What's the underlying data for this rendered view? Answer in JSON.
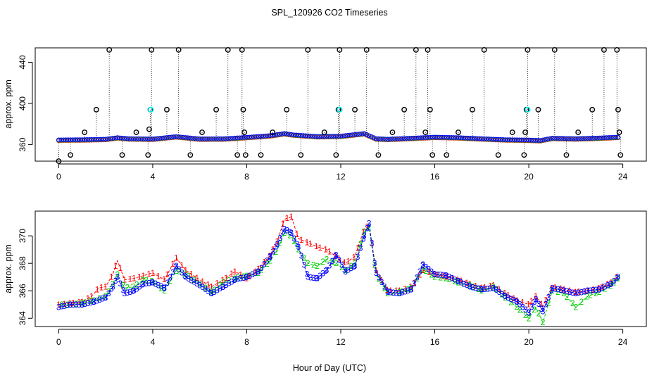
{
  "title": "SPL_120926  CO2 Timeseries",
  "xlabel": "Hour of Day (UTC)",
  "colors": {
    "series1": "#ff0000",
    "series2": "#00cd00",
    "series3": "#0000ff",
    "flagged": "#000000",
    "cyan": "#00ffff"
  },
  "chart_data": [
    {
      "type": "scatter",
      "name": "top-panel",
      "ylabel": "approx. ppm",
      "xlim": [
        -1,
        25
      ],
      "ylim": [
        344,
        454
      ],
      "xticks": [
        0,
        4,
        8,
        12,
        16,
        20,
        24
      ],
      "yticks": [
        360,
        400,
        440
      ],
      "baseline": [
        [
          0,
          364.3
        ],
        [
          1,
          364.5
        ],
        [
          2,
          365.0
        ],
        [
          2.5,
          366.5
        ],
        [
          3,
          365.5
        ],
        [
          4,
          365.2
        ],
        [
          5,
          367.5
        ],
        [
          6,
          365.3
        ],
        [
          7,
          365.4
        ],
        [
          8,
          366.8
        ],
        [
          9,
          368.5
        ],
        [
          9.6,
          370.5
        ],
        [
          10,
          369.2
        ],
        [
          11,
          367.6
        ],
        [
          12,
          368.0
        ],
        [
          13,
          370.5
        ],
        [
          13.5,
          365.5
        ],
        [
          14,
          365.0
        ],
        [
          15,
          366.0
        ],
        [
          16,
          367.0
        ],
        [
          17,
          366.5
        ],
        [
          18,
          365.5
        ],
        [
          19,
          364.5
        ],
        [
          20,
          364.2
        ],
        [
          20.5,
          363.8
        ],
        [
          21,
          366.0
        ],
        [
          22,
          365.5
        ],
        [
          23,
          366.2
        ],
        [
          23.8,
          367.0
        ]
      ],
      "flagged_points": [
        [
          0,
          344
        ],
        [
          0.5,
          350
        ],
        [
          1.1,
          372
        ],
        [
          1.6,
          394
        ],
        [
          2.15,
          452
        ],
        [
          2.7,
          350
        ],
        [
          3.3,
          372
        ],
        [
          3.8,
          350
        ],
        [
          3.85,
          375
        ],
        [
          3.9,
          394
        ],
        [
          3.95,
          452
        ],
        [
          4.6,
          394
        ],
        [
          5.1,
          452
        ],
        [
          5.6,
          350
        ],
        [
          6.1,
          372
        ],
        [
          6.7,
          394
        ],
        [
          7.2,
          452
        ],
        [
          7.6,
          350
        ],
        [
          7.8,
          452
        ],
        [
          7.85,
          394
        ],
        [
          7.9,
          372
        ],
        [
          7.95,
          350
        ],
        [
          8.6,
          350
        ],
        [
          9.1,
          372
        ],
        [
          9.7,
          394
        ],
        [
          10.3,
          350
        ],
        [
          10.6,
          452
        ],
        [
          11.3,
          372
        ],
        [
          11.8,
          350
        ],
        [
          11.9,
          394
        ],
        [
          11.95,
          452
        ],
        [
          12.6,
          394
        ],
        [
          13.1,
          452
        ],
        [
          13.6,
          350
        ],
        [
          14.2,
          372
        ],
        [
          14.7,
          394
        ],
        [
          15.2,
          452
        ],
        [
          15.6,
          372
        ],
        [
          15.7,
          452
        ],
        [
          15.8,
          394
        ],
        [
          15.9,
          350
        ],
        [
          16.5,
          350
        ],
        [
          17.0,
          372
        ],
        [
          17.6,
          394
        ],
        [
          18.1,
          452
        ],
        [
          18.7,
          350
        ],
        [
          19.3,
          372
        ],
        [
          19.8,
          350
        ],
        [
          19.85,
          372
        ],
        [
          19.9,
          394
        ],
        [
          19.95,
          452
        ],
        [
          20.4,
          394
        ],
        [
          21.1,
          452
        ],
        [
          21.6,
          350
        ],
        [
          22.1,
          372
        ],
        [
          22.7,
          394
        ],
        [
          23.2,
          452
        ],
        [
          23.75,
          452
        ],
        [
          23.8,
          394
        ],
        [
          23.85,
          372
        ],
        [
          23.9,
          350
        ]
      ],
      "cyan_points": [
        [
          3.92,
          394
        ],
        [
          11.95,
          394
        ],
        [
          19.95,
          394
        ]
      ]
    },
    {
      "type": "line",
      "name": "bottom-panel",
      "ylabel": "approx. ppm",
      "xlim": [
        -1,
        25
      ],
      "ylim": [
        363.4,
        371.8
      ],
      "xticks": [
        0,
        4,
        8,
        12,
        16,
        20,
        24
      ],
      "yticks": [
        364,
        366,
        368,
        370
      ],
      "markers": [
        "1",
        "2",
        "3"
      ],
      "series": [
        {
          "name": "1",
          "color": "#ff0000",
          "values": [
            [
              0,
              365.0
            ],
            [
              0.5,
              365.1
            ],
            [
              1,
              365.2
            ],
            [
              1.4,
              365.6
            ],
            [
              1.7,
              366.2
            ],
            [
              2.0,
              366.3
            ],
            [
              2.3,
              367.2
            ],
            [
              2.5,
              368.2
            ],
            [
              2.8,
              366.8
            ],
            [
              3.2,
              366.9
            ],
            [
              3.6,
              367.1
            ],
            [
              4.0,
              367.3
            ],
            [
              4.5,
              366.8
            ],
            [
              5.0,
              368.4
            ],
            [
              5.4,
              367.5
            ],
            [
              6.0,
              366.8
            ],
            [
              6.5,
              366.3
            ],
            [
              7.0,
              366.8
            ],
            [
              7.5,
              367.4
            ],
            [
              8.0,
              366.9
            ],
            [
              8.5,
              367.6
            ],
            [
              9.0,
              368.6
            ],
            [
              9.3,
              369.6
            ],
            [
              9.6,
              371.2
            ],
            [
              9.9,
              371.4
            ],
            [
              10.2,
              369.8
            ],
            [
              10.6,
              369.5
            ],
            [
              11.0,
              369.2
            ],
            [
              11.4,
              369.0
            ],
            [
              11.8,
              368.5
            ],
            [
              12.2,
              368.0
            ],
            [
              12.6,
              368.5
            ],
            [
              13.0,
              370.5
            ],
            [
              13.2,
              370.8
            ],
            [
              13.5,
              367.5
            ],
            [
              14.0,
              366.0
            ],
            [
              14.5,
              366.0
            ],
            [
              15.0,
              366.3
            ],
            [
              15.5,
              367.5
            ],
            [
              16.0,
              367.2
            ],
            [
              16.5,
              367.0
            ],
            [
              17.0,
              366.8
            ],
            [
              17.5,
              366.5
            ],
            [
              18.0,
              366.2
            ],
            [
              18.5,
              366.4
            ],
            [
              19.0,
              365.8
            ],
            [
              19.5,
              365.3
            ],
            [
              20.0,
              365.0
            ],
            [
              20.3,
              365.6
            ],
            [
              20.6,
              364.9
            ],
            [
              21.0,
              366.3
            ],
            [
              21.5,
              366.1
            ],
            [
              22.0,
              365.9
            ],
            [
              22.5,
              366.0
            ],
            [
              23.0,
              366.2
            ],
            [
              23.5,
              366.6
            ],
            [
              23.8,
              367.1
            ]
          ]
        },
        {
          "name": "2",
          "color": "#00cd00",
          "values": [
            [
              0,
              365.0
            ],
            [
              0.5,
              365.0
            ],
            [
              1,
              365.1
            ],
            [
              1.5,
              365.3
            ],
            [
              2.0,
              365.6
            ],
            [
              2.3,
              366.5
            ],
            [
              2.5,
              367.2
            ],
            [
              2.8,
              366.2
            ],
            [
              3.2,
              366.3
            ],
            [
              3.6,
              366.8
            ],
            [
              4.0,
              366.7
            ],
            [
              4.5,
              366.0
            ],
            [
              5.0,
              367.5
            ],
            [
              5.4,
              367.2
            ],
            [
              6.0,
              366.5
            ],
            [
              6.5,
              365.9
            ],
            [
              7.0,
              366.6
            ],
            [
              7.5,
              366.9
            ],
            [
              8.0,
              367.1
            ],
            [
              8.5,
              367.3
            ],
            [
              9.0,
              368.2
            ],
            [
              9.3,
              369.0
            ],
            [
              9.6,
              370.2
            ],
            [
              9.9,
              370.0
            ],
            [
              10.2,
              369.0
            ],
            [
              10.6,
              368.0
            ],
            [
              11.0,
              367.8
            ],
            [
              11.4,
              368.3
            ],
            [
              11.8,
              368.0
            ],
            [
              12.2,
              367.5
            ],
            [
              12.6,
              368.0
            ],
            [
              13.0,
              370.3
            ],
            [
              13.2,
              370.6
            ],
            [
              13.5,
              367.2
            ],
            [
              14.0,
              365.8
            ],
            [
              14.5,
              365.9
            ],
            [
              15.0,
              366.2
            ],
            [
              15.5,
              367.6
            ],
            [
              16.0,
              367.0
            ],
            [
              16.5,
              366.9
            ],
            [
              17.0,
              366.6
            ],
            [
              17.5,
              366.4
            ],
            [
              18.0,
              366.0
            ],
            [
              18.5,
              366.3
            ],
            [
              19.0,
              365.5
            ],
            [
              19.5,
              364.8
            ],
            [
              20.0,
              364.0
            ],
            [
              20.3,
              364.8
            ],
            [
              20.6,
              363.7
            ],
            [
              21.0,
              366.0
            ],
            [
              21.5,
              365.8
            ],
            [
              22.0,
              364.8
            ],
            [
              22.5,
              365.6
            ],
            [
              23.0,
              365.9
            ],
            [
              23.5,
              366.4
            ],
            [
              23.8,
              366.9
            ]
          ]
        },
        {
          "name": "3",
          "color": "#0000ff",
          "values": [
            [
              0,
              364.8
            ],
            [
              0.5,
              365.0
            ],
            [
              1,
              365.0
            ],
            [
              1.5,
              365.2
            ],
            [
              2.0,
              365.5
            ],
            [
              2.3,
              366.3
            ],
            [
              2.5,
              367.0
            ],
            [
              2.8,
              365.8
            ],
            [
              3.2,
              366.0
            ],
            [
              3.6,
              366.5
            ],
            [
              4.0,
              366.6
            ],
            [
              4.5,
              366.2
            ],
            [
              5.0,
              367.8
            ],
            [
              5.4,
              367.0
            ],
            [
              6.0,
              366.4
            ],
            [
              6.5,
              365.8
            ],
            [
              7.0,
              366.3
            ],
            [
              7.5,
              366.8
            ],
            [
              8.0,
              367.0
            ],
            [
              8.5,
              367.4
            ],
            [
              9.0,
              368.5
            ],
            [
              9.3,
              369.4
            ],
            [
              9.6,
              370.5
            ],
            [
              9.9,
              370.2
            ],
            [
              10.2,
              369.2
            ],
            [
              10.6,
              367.0
            ],
            [
              11.0,
              366.9
            ],
            [
              11.4,
              367.5
            ],
            [
              11.8,
              368.6
            ],
            [
              12.2,
              367.4
            ],
            [
              12.6,
              367.8
            ],
            [
              13.0,
              370.0
            ],
            [
              13.2,
              370.9
            ],
            [
              13.5,
              367.3
            ],
            [
              14.0,
              365.9
            ],
            [
              14.5,
              365.8
            ],
            [
              15.0,
              366.1
            ],
            [
              15.5,
              367.9
            ],
            [
              16.0,
              367.2
            ],
            [
              16.5,
              367.1
            ],
            [
              17.0,
              366.7
            ],
            [
              17.5,
              366.3
            ],
            [
              18.0,
              366.1
            ],
            [
              18.5,
              366.2
            ],
            [
              19.0,
              365.6
            ],
            [
              19.5,
              365.2
            ],
            [
              20.0,
              364.4
            ],
            [
              20.3,
              365.4
            ],
            [
              20.6,
              364.5
            ],
            [
              21.0,
              366.2
            ],
            [
              21.5,
              366.0
            ],
            [
              22.0,
              365.8
            ],
            [
              22.5,
              366.0
            ],
            [
              23.0,
              366.1
            ],
            [
              23.5,
              366.5
            ],
            [
              23.8,
              367.0
            ]
          ]
        }
      ]
    }
  ]
}
